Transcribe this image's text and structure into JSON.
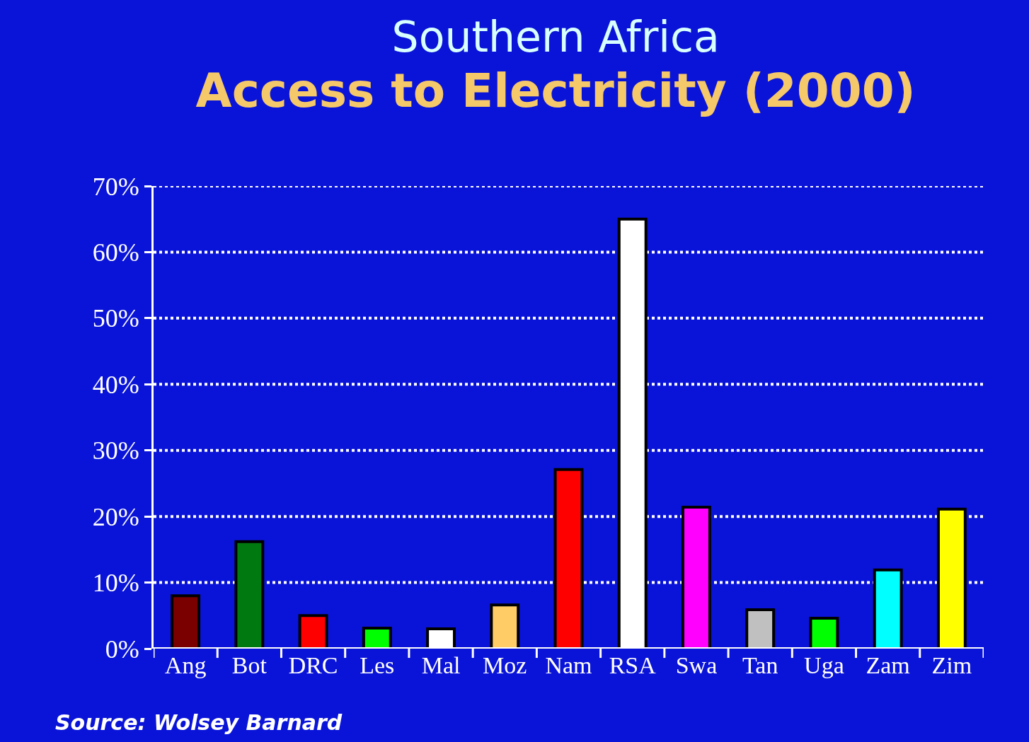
{
  "chart_data": {
    "type": "bar",
    "title": "Southern Africa",
    "subtitle": "Access to Electricity (2000)",
    "categories": [
      "Ang",
      "Bot",
      "DRC",
      "Les",
      "Mal",
      "Moz",
      "Nam",
      "RSA",
      "Swa",
      "Tan",
      "Uga",
      "Zam",
      "Zim"
    ],
    "values": [
      8,
      16.2,
      5,
      3.1,
      3,
      6.6,
      27.1,
      65,
      21.4,
      5.9,
      4.6,
      11.9,
      21.1
    ],
    "colors": [
      "#7a0000",
      "#007a10",
      "#ff0000",
      "#00ff00",
      "#ffffff",
      "#ffcc66",
      "#ff0000",
      "#ffffff",
      "#ff00ff",
      "#c0c0c0",
      "#00ff00",
      "#00ffff",
      "#ffff00"
    ],
    "ylim": [
      0,
      70
    ],
    "yticks": [
      {
        "value": 0,
        "label": "0%"
      },
      {
        "value": 10,
        "label": "10%"
      },
      {
        "value": 20,
        "label": "20%"
      },
      {
        "value": 30,
        "label": "30%"
      },
      {
        "value": 40,
        "label": "40%"
      },
      {
        "value": 50,
        "label": "50%"
      },
      {
        "value": 60,
        "label": "60%"
      },
      {
        "value": 70,
        "label": "70%"
      }
    ],
    "grid": "y",
    "annotations": [
      "Source: Wolsey Barnard"
    ]
  }
}
